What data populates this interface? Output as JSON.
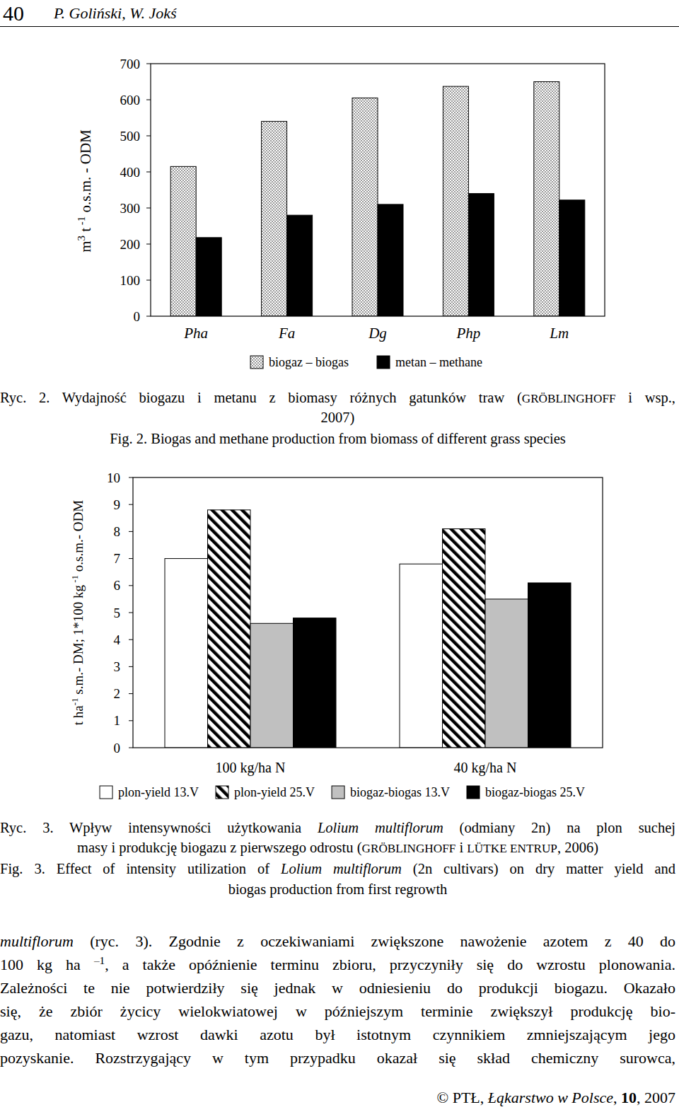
{
  "header": {
    "page_number": "40",
    "authors": "P. Goliński, W. Jokś"
  },
  "chart_data": [
    {
      "type": "bar",
      "y_label": [
        {
          "text": "m"
        },
        {
          "text": "3",
          "style": "sup"
        },
        {
          "text": " t"
        },
        {
          "text": " -1",
          "style": "sup"
        },
        {
          "text": " o.s.m. - ODM"
        }
      ],
      "categories": [
        "Pha",
        "Fa",
        "Dg",
        "Php",
        "Lm"
      ],
      "series": [
        {
          "name": "biogaz – biogas",
          "color": "#000000",
          "values": [
            415,
            540,
            605,
            637,
            650
          ]
        },
        {
          "name": "metan – methane",
          "color": "#000000",
          "values": [
            218,
            280,
            310,
            340,
            322
          ]
        }
      ],
      "ylim": [
        0,
        700
      ],
      "yticks": [
        0,
        100,
        200,
        300,
        400,
        500,
        600,
        700
      ],
      "legend": "bottom"
    },
    {
      "type": "bar",
      "y_label": [
        {
          "text": "t ha"
        },
        {
          "text": "-1",
          "style": "sup"
        },
        {
          "text": " s.m.- DM; 1*100 kg"
        },
        {
          "text": " -1",
          "style": "sup"
        },
        {
          "text": " o.s.m.- ODM"
        }
      ],
      "categories": [
        "100 kg/ha N",
        "40 kg/ha N"
      ],
      "series": [
        {
          "name": "plon-yield 13.V",
          "color": "#ffffff",
          "values": [
            7.0,
            6.8
          ]
        },
        {
          "name": "plon-yield 25.V",
          "color": "#000000",
          "values": [
            8.8,
            8.1
          ]
        },
        {
          "name": "biogaz-biogas 13.V",
          "color": "#c0c0c0",
          "values": [
            4.6,
            5.5
          ]
        },
        {
          "name": "biogaz-biogas 25.V",
          "color": "#000000",
          "values": [
            4.8,
            6.1
          ]
        }
      ],
      "ylim": [
        0,
        10
      ],
      "yticks": [
        0,
        1,
        2,
        3,
        4,
        5,
        6,
        7,
        8,
        9,
        10
      ],
      "legend": "bottom"
    }
  ],
  "captions": [
    {
      "lines": [
        [
          {
            "text": "Ryc. 2. Wydajność biogazu i metanu z biomasy różnych gatunków traw ("
          },
          {
            "text": "GRÖBLINGHOFF",
            "style": "smallcaps"
          },
          {
            "text": " i wsp.,"
          }
        ],
        [
          {
            "text": "2007)"
          }
        ],
        [
          {
            "text": "Fig. 2. Biogas and methane production from biomass of different grass species"
          }
        ]
      ]
    },
    {
      "lines": [
        [
          {
            "text": "Ryc. 3. Wpływ intensywności użytkowania "
          },
          {
            "text": "Lolium multiflorum",
            "style": "italic"
          },
          {
            "text": " (odmiany 2n) na plon suchej"
          }
        ],
        [
          {
            "text": "masy i produkcję biogazu z pierwszego odrostu ("
          },
          {
            "text": "GRÖBLINGHOFF",
            "style": "smallcaps"
          },
          {
            "text": " i "
          },
          {
            "text": "LÜTKE ENTRUP",
            "style": "smallcaps"
          },
          {
            "text": ", 2006)"
          }
        ],
        [
          {
            "text": "Fig. 3. Effect of intensity utilization of "
          },
          {
            "text": "Lolium multiflorum",
            "style": "italic"
          },
          {
            "text": " (2n cultivars) on dry matter yield and"
          }
        ],
        [
          {
            "text": "biogas production from first regrowth"
          }
        ]
      ]
    }
  ],
  "body": [
    [
      {
        "text": "multiflorum",
        "style": "italic"
      },
      {
        "text": " (ryc. 3). Zgodnie z oczekiwaniami zwiększone nawożenie azotem z 40 do"
      }
    ],
    [
      {
        "text": "100 kg ha "
      },
      {
        "text": "–1",
        "style": "sup"
      },
      {
        "text": ", a także opóźnienie terminu zbioru, przyczyniły się do wzrostu plonowania."
      }
    ],
    [
      {
        "text": "Zależności te nie potwierdziły się jednak w odniesieniu do produkcji biogazu. Okazało"
      }
    ],
    [
      {
        "text": "się, że zbiór życicy wielokwiatowej w późniejszym terminie zwiększył produkcję bio-"
      }
    ],
    [
      {
        "text": "gazu, natomiast wzrost dawki azotu był istotnym czynnikiem zmniejszającym jego"
      }
    ],
    [
      {
        "text": "pozyskanie. Rozstrzygający w tym przypadku okazał się skład chemiczny surowca,"
      }
    ]
  ],
  "footer": [
    {
      "text": "© PTŁ, "
    },
    {
      "text": "Łąkarstwo w Polsce",
      "style": "italic"
    },
    {
      "text": ", "
    },
    {
      "text": "10",
      "style": "bold"
    },
    {
      "text": ", 2007"
    }
  ]
}
